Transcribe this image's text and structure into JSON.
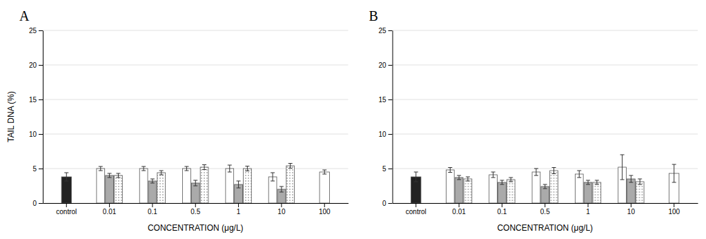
{
  "chart_data": [
    {
      "type": "bar",
      "title": "A",
      "xlabel": "CONCENTRATION  (μg/L)",
      "ylabel": "TAIL DNA (%)",
      "categories": [
        "control",
        "0.01",
        "0.1",
        "0.5",
        "1",
        "10",
        "100"
      ],
      "series": [
        {
          "color": "#ffffff",
          "values": [
            null,
            5.0,
            5.0,
            5.0,
            5.0,
            3.8,
            4.5
          ],
          "errors": [
            null,
            0.3,
            0.3,
            0.3,
            0.5,
            0.6,
            0.3
          ]
        },
        {
          "color": "#aaaaaa",
          "values": [
            null,
            4.0,
            3.2,
            2.9,
            2.7,
            2.0,
            null
          ],
          "errors": [
            null,
            0.3,
            0.3,
            0.4,
            0.5,
            0.4,
            null
          ]
        },
        {
          "color": "#ffffff",
          "values": [
            null,
            4.0,
            4.4,
            5.2,
            5.0,
            5.4,
            null
          ],
          "errors": [
            null,
            0.3,
            0.3,
            0.35,
            0.35,
            0.35,
            null
          ]
        },
        {
          "color": "#222222",
          "values": [
            3.8,
            null,
            null,
            null,
            null,
            null,
            null
          ],
          "errors": [
            0.6,
            null,
            null,
            null,
            null,
            null,
            null
          ]
        }
      ],
      "ylim": [
        0,
        25
      ],
      "yticks": [
        0,
        5,
        10,
        15,
        20,
        25
      ],
      "grid": true
    },
    {
      "type": "bar",
      "title": "B",
      "xlabel": "CONCENTRATION  (μg/L)",
      "categories": [
        "control",
        "0.01",
        "0.1",
        "0.5",
        "1",
        "10",
        "100"
      ],
      "series": [
        {
          "color": "#ffffff",
          "values": [
            null,
            4.8,
            4.1,
            4.5,
            4.2,
            5.2,
            4.3
          ],
          "errors": [
            null,
            0.35,
            0.4,
            0.5,
            0.5,
            1.8,
            1.3
          ]
        },
        {
          "color": "#aaaaaa",
          "values": [
            null,
            3.7,
            3.0,
            2.4,
            3.0,
            3.5,
            null
          ],
          "errors": [
            null,
            0.3,
            0.3,
            0.3,
            0.3,
            0.5,
            null
          ]
        },
        {
          "color": "#ffffff",
          "values": [
            null,
            3.5,
            3.4,
            4.7,
            3.0,
            3.1,
            null
          ],
          "errors": [
            null,
            0.3,
            0.3,
            0.45,
            0.3,
            0.4,
            null
          ]
        },
        {
          "color": "#222222",
          "values": [
            3.8,
            null,
            null,
            null,
            null,
            null,
            null
          ],
          "errors": [
            0.7,
            null,
            null,
            null,
            null,
            null,
            null
          ]
        }
      ],
      "ylim": [
        0,
        25
      ],
      "yticks": [
        0,
        5,
        10,
        15,
        20,
        25
      ],
      "grid": true
    }
  ]
}
